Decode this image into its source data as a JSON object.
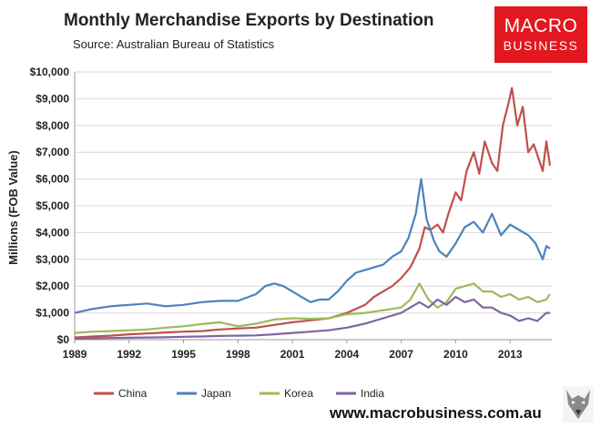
{
  "title": "Monthly Merchandise Exports by Destination",
  "subtitle": "Source: Australian Bureau of Statistics",
  "logo": {
    "line1": "MACRO",
    "line2": "BUSINESS"
  },
  "website": "www.macrobusiness.com.au",
  "chart_data": {
    "type": "line",
    "title": "Monthly Merchandise Exports by Destination",
    "xlabel": "",
    "ylabel": "Millions (FOB Value)",
    "xlim": [
      1989,
      2015.3
    ],
    "ylim": [
      0,
      10000
    ],
    "grid": true,
    "legend_position": "bottom",
    "x_ticks": [
      1989,
      1992,
      1995,
      1998,
      2001,
      2004,
      2007,
      2010,
      2013
    ],
    "x_tick_labels": [
      "1989",
      "1992",
      "1995",
      "1998",
      "2001",
      "2004",
      "2007",
      "2010",
      "2013"
    ],
    "y_ticks": [
      0,
      1000,
      2000,
      3000,
      4000,
      5000,
      6000,
      7000,
      8000,
      9000,
      10000
    ],
    "y_tick_labels": [
      "$0",
      "$1,000",
      "$2,000",
      "$3,000",
      "$4,000",
      "$5,000",
      "$6,000",
      "$7,000",
      "$8,000",
      "$9,000",
      "$10,000"
    ],
    "series": [
      {
        "name": "China",
        "color": "#c0504d",
        "x": [
          1989,
          1990,
          1991,
          1992,
          1993,
          1994,
          1995,
          1996,
          1997,
          1998,
          1999,
          2000,
          2001,
          2002,
          2003,
          2003.5,
          2004,
          2004.5,
          2005,
          2005.5,
          2006,
          2006.5,
          2007,
          2007.5,
          2008,
          2008.3,
          2008.6,
          2009,
          2009.3,
          2009.6,
          2010,
          2010.3,
          2010.6,
          2011,
          2011.3,
          2011.6,
          2012,
          2012.3,
          2012.6,
          2012.9,
          2013.1,
          2013.4,
          2013.7,
          2014,
          2014.3,
          2014.6,
          2014.8,
          2015,
          2015.2
        ],
        "y": [
          80,
          120,
          150,
          200,
          230,
          270,
          300,
          320,
          380,
          420,
          450,
          550,
          650,
          720,
          800,
          900,
          1000,
          1150,
          1300,
          1600,
          1800,
          2000,
          2300,
          2700,
          3400,
          4200,
          4100,
          4300,
          4000,
          4700,
          5500,
          5200,
          6300,
          7000,
          6200,
          7400,
          6600,
          6300,
          8000,
          8800,
          9400,
          8000,
          8700,
          7000,
          7300,
          6700,
          6300,
          7400,
          6500
        ]
      },
      {
        "name": "Japan",
        "color": "#4f81bd",
        "x": [
          1989,
          1990,
          1991,
          1992,
          1993,
          1994,
          1995,
          1996,
          1997,
          1998,
          1999,
          1999.5,
          2000,
          2000.5,
          2001,
          2001.5,
          2002,
          2002.5,
          2003,
          2003.5,
          2004,
          2004.5,
          2005,
          2005.5,
          2006,
          2006.5,
          2007,
          2007.4,
          2007.8,
          2008.1,
          2008.4,
          2008.8,
          2009.1,
          2009.5,
          2010,
          2010.5,
          2011,
          2011.5,
          2012,
          2012.5,
          2013,
          2013.5,
          2014,
          2014.4,
          2014.8,
          2015,
          2015.2
        ],
        "y": [
          1000,
          1150,
          1250,
          1300,
          1350,
          1250,
          1300,
          1400,
          1450,
          1450,
          1700,
          2000,
          2100,
          2000,
          1800,
          1600,
          1400,
          1500,
          1500,
          1800,
          2200,
          2500,
          2600,
          2700,
          2800,
          3100,
          3300,
          3800,
          4700,
          6000,
          4500,
          3700,
          3300,
          3100,
          3600,
          4200,
          4400,
          4000,
          4700,
          3900,
          4300,
          4100,
          3900,
          3600,
          3000,
          3500,
          3400
        ]
      },
      {
        "name": "Korea",
        "color": "#9bbb59",
        "x": [
          1989,
          1990,
          1991,
          1992,
          1993,
          1994,
          1995,
          1996,
          1997,
          1998,
          1999,
          2000,
          2001,
          2002,
          2003,
          2004,
          2005,
          2006,
          2007,
          2007.5,
          2008,
          2008.5,
          2009,
          2009.5,
          2010,
          2010.5,
          2011,
          2011.5,
          2012,
          2012.5,
          2013,
          2013.5,
          2014,
          2014.5,
          2015,
          2015.2
        ],
        "y": [
          250,
          300,
          320,
          350,
          380,
          450,
          500,
          580,
          650,
          500,
          600,
          750,
          800,
          780,
          800,
          950,
          1000,
          1100,
          1200,
          1500,
          2100,
          1500,
          1200,
          1400,
          1900,
          2000,
          2100,
          1800,
          1800,
          1600,
          1700,
          1500,
          1600,
          1400,
          1500,
          1700
        ]
      },
      {
        "name": "India",
        "color": "#8064a2",
        "x": [
          1989,
          1990,
          1991,
          1992,
          1993,
          1994,
          1995,
          1996,
          1997,
          1998,
          1999,
          2000,
          2001,
          2002,
          2003,
          2004,
          2005,
          2006,
          2007,
          2007.5,
          2008,
          2008.5,
          2009,
          2009.5,
          2010,
          2010.5,
          2011,
          2011.5,
          2012,
          2012.5,
          2013,
          2013.5,
          2014,
          2014.5,
          2015,
          2015.2
        ],
        "y": [
          40,
          50,
          60,
          70,
          80,
          90,
          110,
          120,
          140,
          150,
          160,
          200,
          250,
          300,
          350,
          450,
          600,
          800,
          1000,
          1200,
          1400,
          1200,
          1500,
          1300,
          1600,
          1400,
          1500,
          1200,
          1200,
          1000,
          900,
          700,
          800,
          700,
          1000,
          1000
        ]
      }
    ]
  }
}
